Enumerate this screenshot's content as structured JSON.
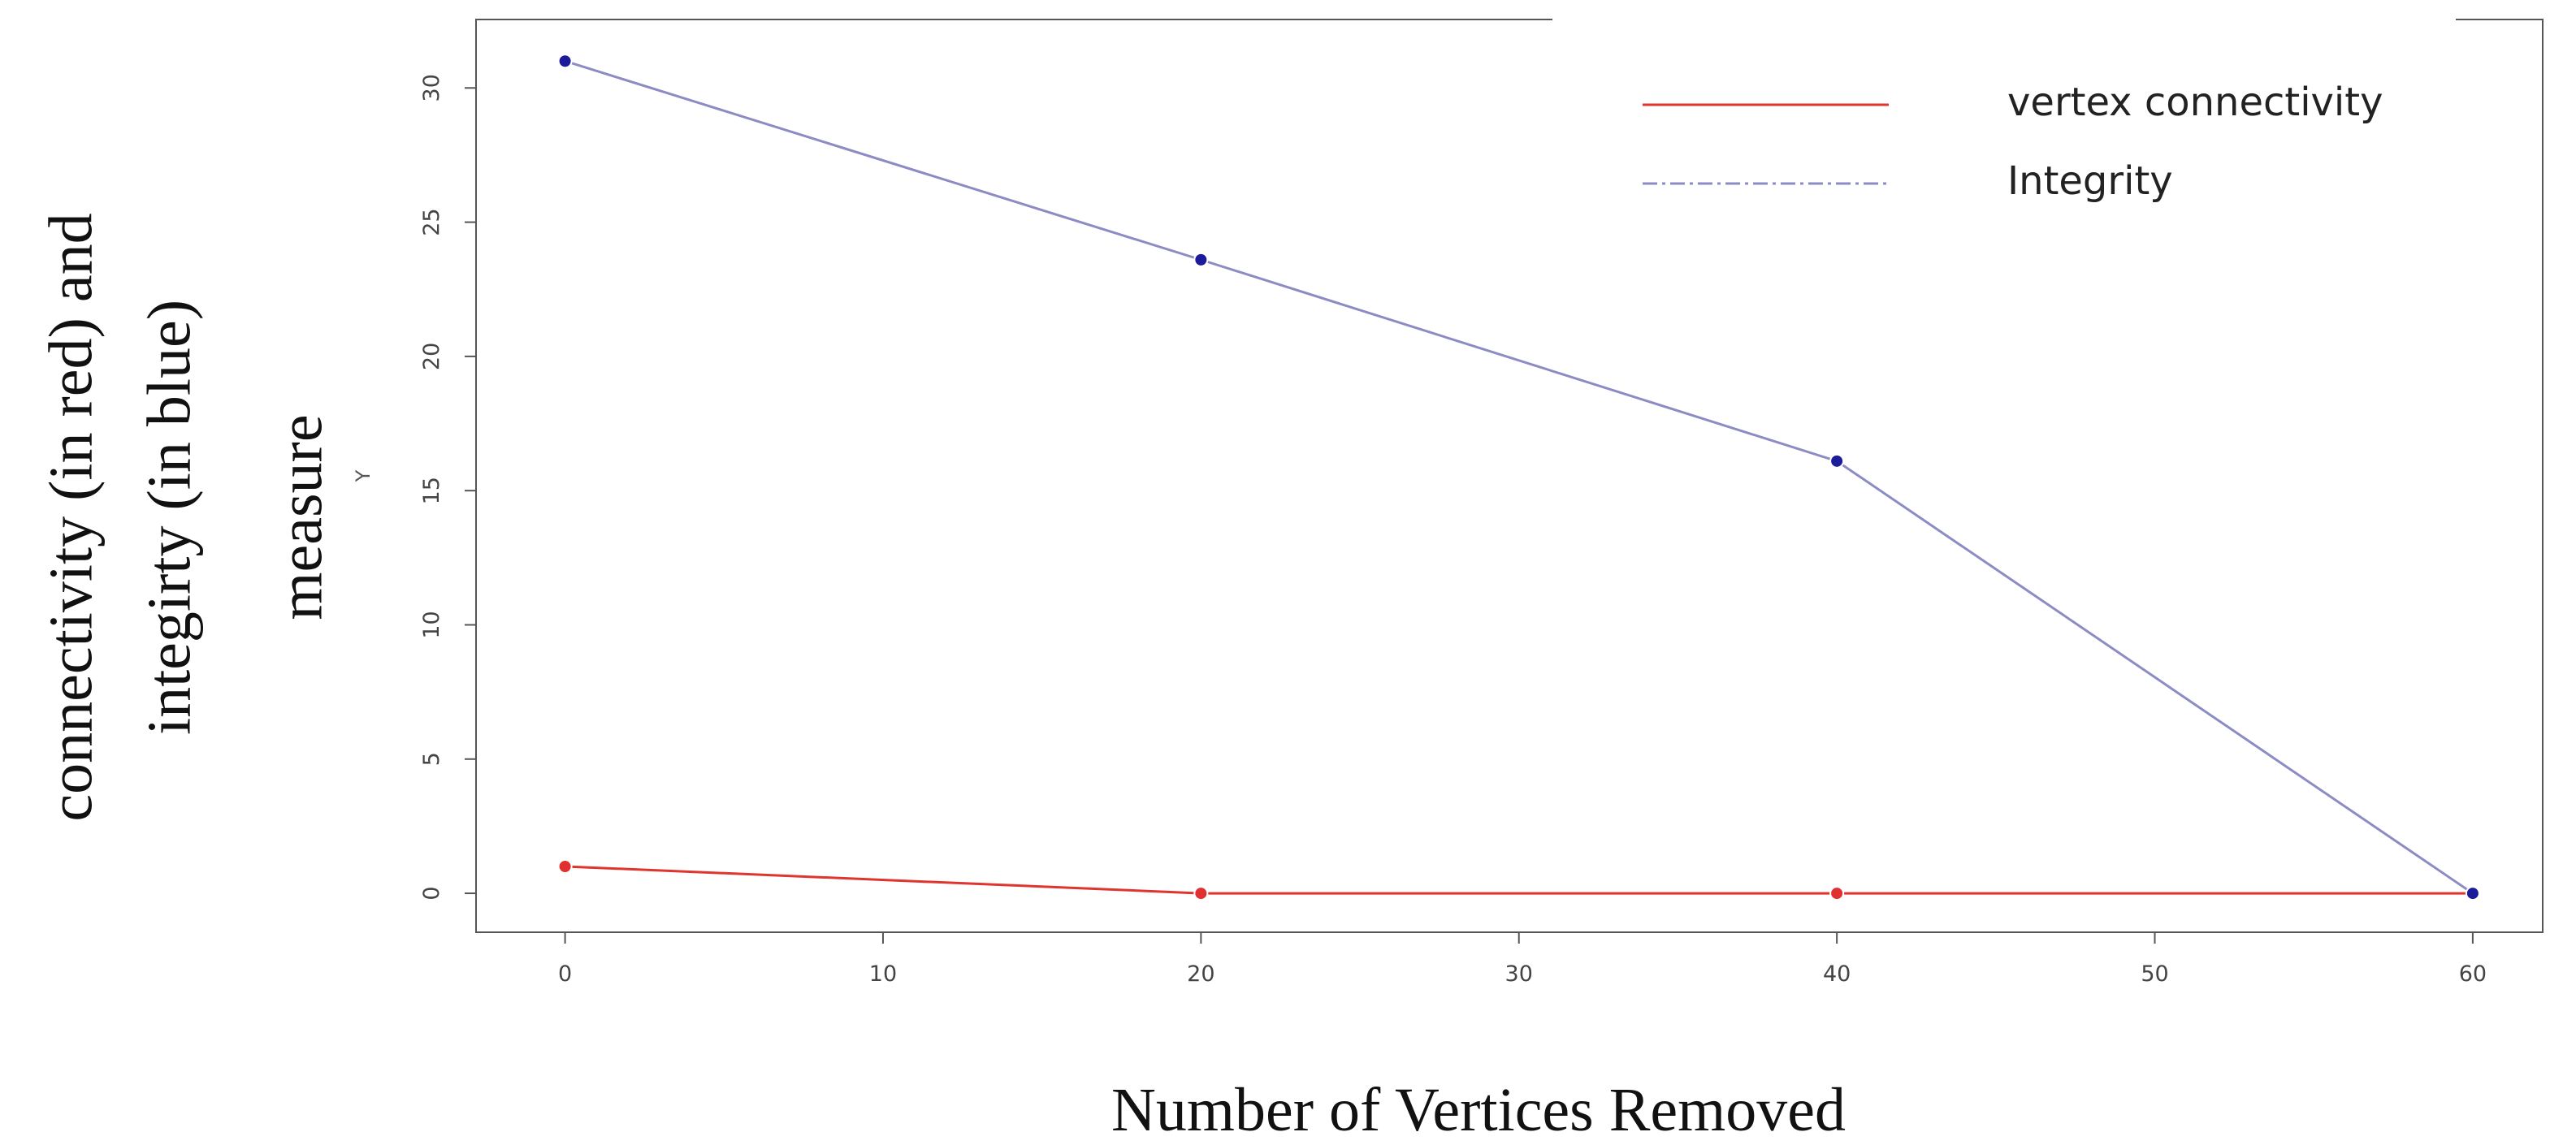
{
  "chart_data": {
    "type": "line",
    "xlabel": "Number of Vertices Removed",
    "ylabel": [
      "connectivity (in red) and",
      "integirty (in blue)",
      "measure"
    ],
    "y_axis_name": "Y",
    "x": [
      0,
      20,
      40,
      60
    ],
    "series": [
      {
        "name": "vertex connectivity",
        "color": "#e0352e",
        "marker_color": "#e03030",
        "legend_linestyle": "solid",
        "values": [
          1,
          0,
          0,
          0
        ]
      },
      {
        "name": "Integrity",
        "color": "#8c8cc4",
        "marker_color": "#1c1c9a",
        "legend_linestyle": "dashdot",
        "values": [
          31,
          23.6,
          16.1,
          0
        ]
      }
    ],
    "xlim": [
      -2.8,
      62.2
    ],
    "xticks": [
      0,
      10,
      20,
      30,
      40,
      50,
      60
    ],
    "ylim": [
      -1.45,
      32.55
    ],
    "yticks": [
      0,
      5,
      10,
      15,
      20,
      25,
      30
    ],
    "legend": "upper right"
  }
}
